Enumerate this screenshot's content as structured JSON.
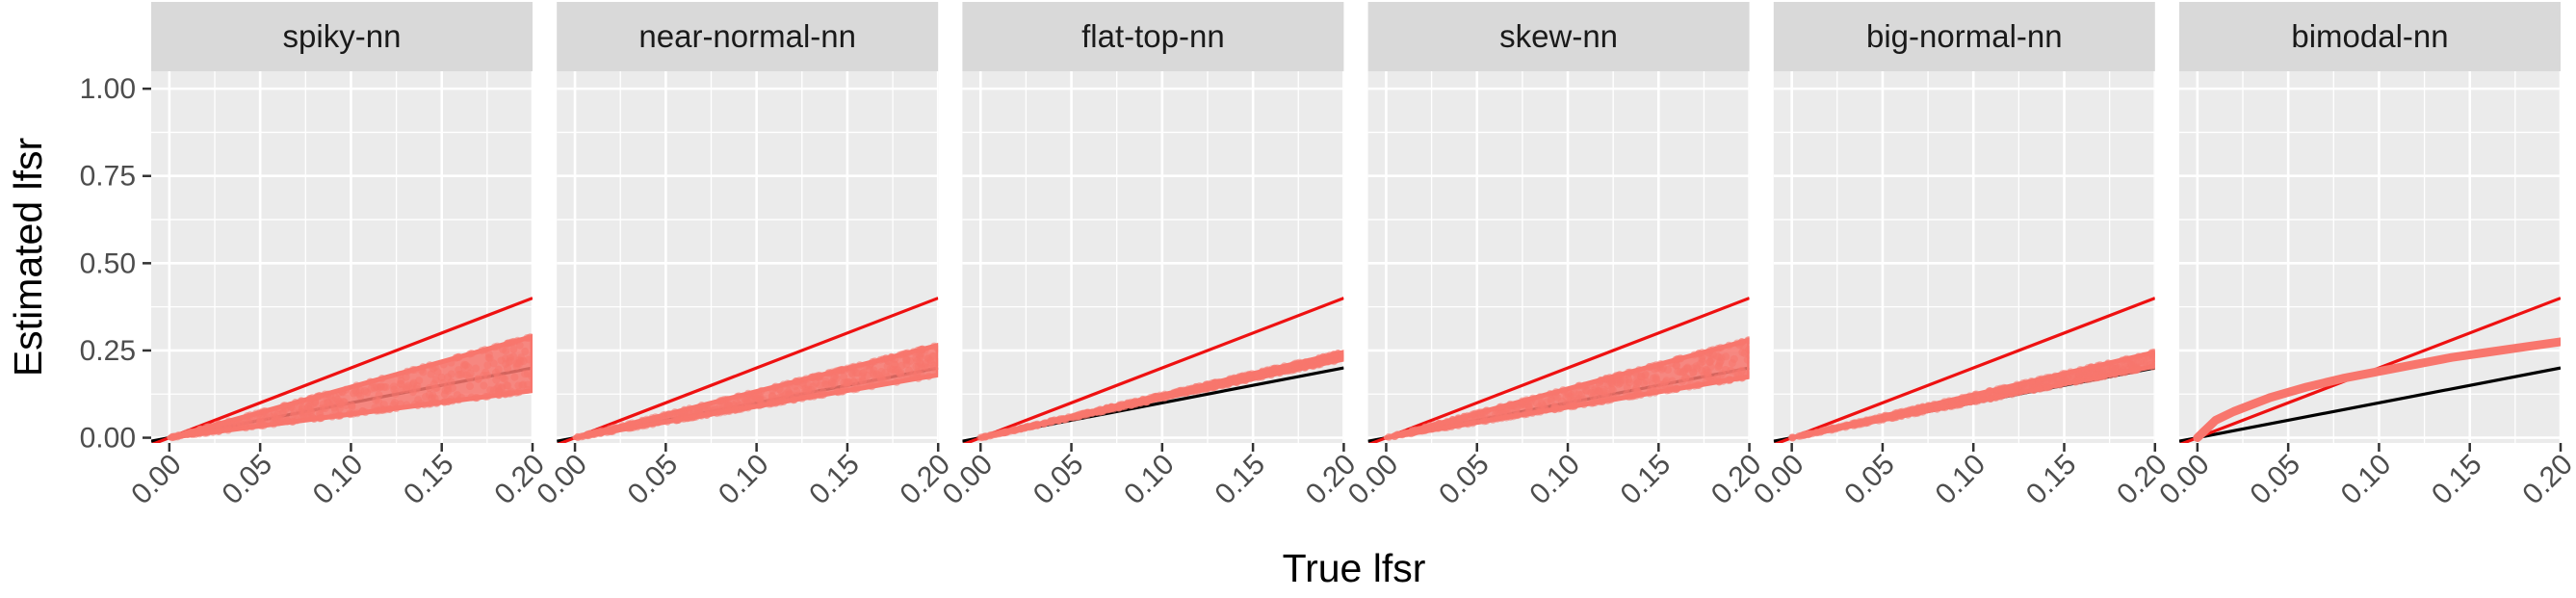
{
  "chart_data": {
    "type": "scatter",
    "xlabel": "True lfsr",
    "ylabel": "Estimated lfsr",
    "xlim": [
      -0.01,
      0.2
    ],
    "ylim": [
      -0.015,
      1.05
    ],
    "x_ticks": [
      "0.00",
      "0.05",
      "0.10",
      "0.15",
      "0.20"
    ],
    "y_ticks": [
      "0.00",
      "0.25",
      "0.50",
      "0.75",
      "1.00"
    ],
    "x_tick_values": [
      0.0,
      0.05,
      0.1,
      0.15,
      0.2
    ],
    "y_tick_values": [
      0.0,
      0.25,
      0.5,
      0.75,
      1.0
    ],
    "reference_lines": [
      {
        "label": "y = x",
        "slope": 1,
        "color": "#000000"
      },
      {
        "label": "y = 2x",
        "slope": 2,
        "color": "#ee1111"
      }
    ],
    "point_color": "#f8766d",
    "grid": true,
    "panel_background": "#ebebeb",
    "strip_background": "#d9d9d9",
    "panels": [
      {
        "title": "spiky-nn",
        "band": {
          "x_end": 0.2,
          "upper_at_end": 0.29,
          "lower_at_end": 0.135,
          "mid_at_end": 0.21
        }
      },
      {
        "title": "near-normal-nn",
        "band": {
          "x_end": 0.2,
          "upper_at_end": 0.265,
          "lower_at_end": 0.18,
          "mid_at_end": 0.225
        }
      },
      {
        "title": "flat-top-nn",
        "band": {
          "x_end": 0.2,
          "upper_at_end": 0.245,
          "lower_at_end": 0.225,
          "mid_at_end": 0.235
        }
      },
      {
        "title": "skew-nn",
        "band": {
          "x_end": 0.2,
          "upper_at_end": 0.28,
          "lower_at_end": 0.175,
          "mid_at_end": 0.23
        }
      },
      {
        "title": "big-normal-nn",
        "band": {
          "x_end": 0.2,
          "upper_at_end": 0.245,
          "lower_at_end": 0.205,
          "mid_at_end": 0.22
        }
      },
      {
        "title": "bimodal-nn",
        "curve": {
          "x": [
            0.0,
            0.01,
            0.02,
            0.04,
            0.06,
            0.08,
            0.1,
            0.12,
            0.14,
            0.16,
            0.18,
            0.2
          ],
          "y": [
            0.0,
            0.05,
            0.075,
            0.115,
            0.145,
            0.17,
            0.19,
            0.21,
            0.23,
            0.245,
            0.26,
            0.275
          ]
        }
      }
    ]
  }
}
